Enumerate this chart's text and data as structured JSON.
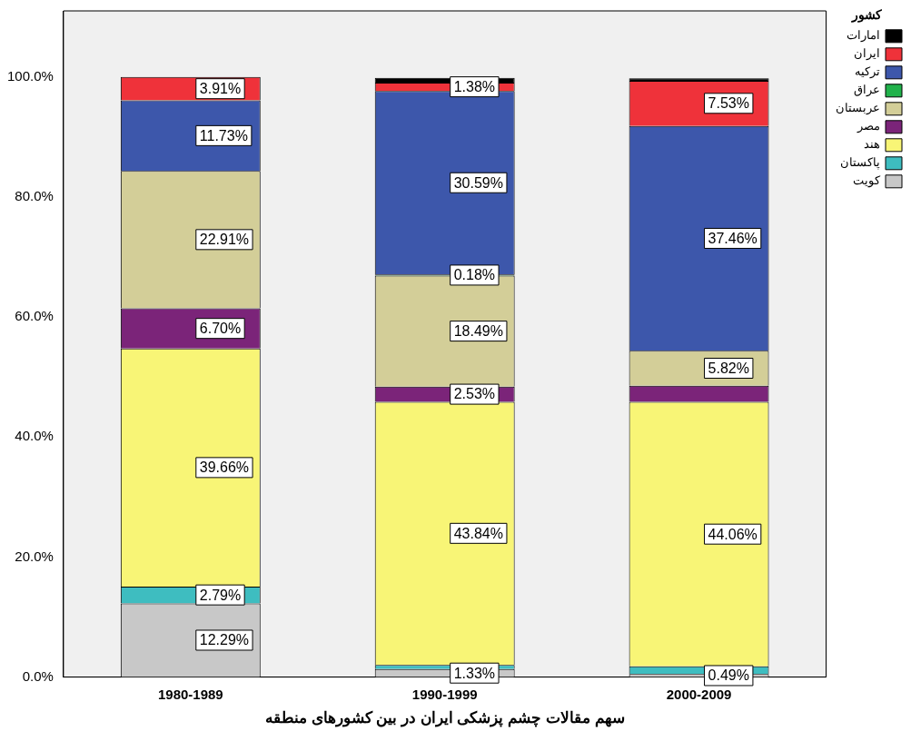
{
  "chart_data": {
    "type": "bar",
    "stacked": true,
    "xlabel": "سهم مقالات چشم پزشکی ایران در بین کشورهای منطقه",
    "legend_title": "کشور",
    "legend": "top right",
    "grid": false,
    "categories": [
      "1980-1989",
      "1990-1999",
      "2000-2009"
    ],
    "ylim": [
      0,
      111
    ],
    "yticks": [
      {
        "value": 0,
        "label": "0.0%"
      },
      {
        "value": 20,
        "label": "20.0%"
      },
      {
        "value": 40,
        "label": "40.0%"
      },
      {
        "value": 60,
        "label": "60.0%"
      },
      {
        "value": 80,
        "label": "80.0%"
      },
      {
        "value": 100,
        "label": "100.0%"
      }
    ],
    "series": [
      {
        "name": "کویت",
        "color": "#c8c8c8",
        "values": [
          12.29,
          1.33,
          0.49
        ],
        "value_labels": [
          "12.29%",
          "1.33%",
          "0.49%"
        ]
      },
      {
        "name": "پاکستان",
        "color": "#3ebdc0",
        "values": [
          2.79,
          0.7,
          1.3
        ],
        "value_labels": [
          "2.79%",
          null,
          null
        ]
      },
      {
        "name": "هند",
        "color": "#f8f576",
        "values": [
          39.66,
          43.84,
          44.06
        ],
        "value_labels": [
          "39.66%",
          "43.84%",
          "44.06%"
        ]
      },
      {
        "name": "مصر",
        "color": "#7b2479",
        "values": [
          6.7,
          2.53,
          2.7
        ],
        "value_labels": [
          "6.70%",
          "2.53%",
          null
        ]
      },
      {
        "name": "عربستان",
        "color": "#d3ce98",
        "values": [
          22.91,
          18.49,
          5.82
        ],
        "value_labels": [
          "22.91%",
          "18.49%",
          "5.82%"
        ]
      },
      {
        "name": "عراق",
        "color": "#21b24b",
        "values": [
          null,
          0.18,
          null
        ],
        "value_labels": [
          null,
          "0.18%",
          null
        ]
      },
      {
        "name": "ترکیه",
        "color": "#3d57ab",
        "values": [
          11.73,
          30.59,
          37.46
        ],
        "value_labels": [
          "11.73%",
          "30.59%",
          "37.46%"
        ]
      },
      {
        "name": "ایران",
        "color": "#ef323a",
        "values": [
          3.91,
          1.38,
          7.53
        ],
        "value_labels": [
          "3.91%",
          "1.38%",
          "7.53%"
        ]
      },
      {
        "name": "امارات",
        "color": "#000000",
        "values": [
          null,
          0.8,
          0.4
        ],
        "value_labels": [
          null,
          null,
          null
        ]
      }
    ]
  }
}
